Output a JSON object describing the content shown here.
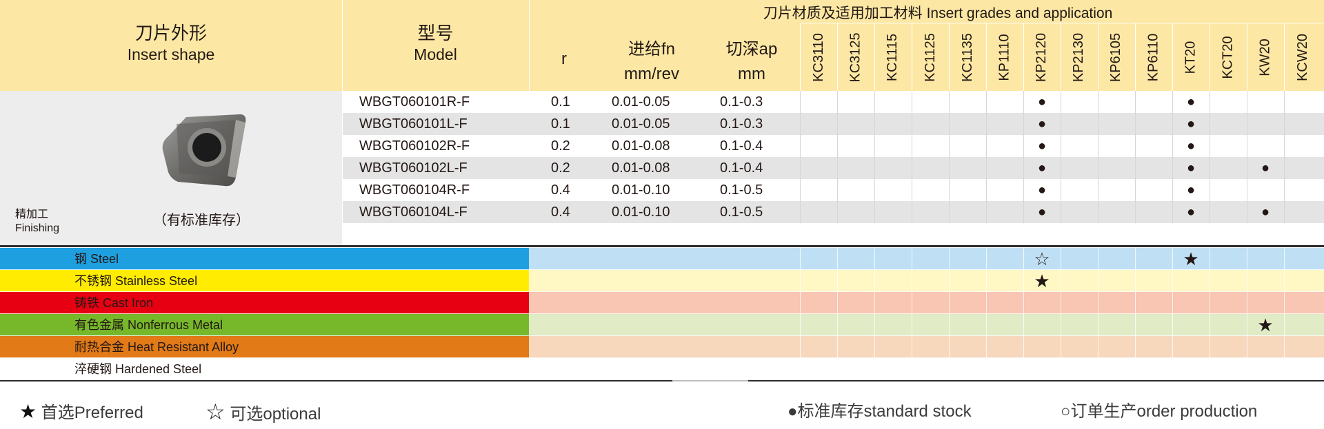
{
  "header": {
    "shape_zh": "刀片外形",
    "shape_en": "Insert shape",
    "model_zh": "型号",
    "model_en": "Model",
    "r": "r",
    "feed_1": "进给fn",
    "feed_2": "mm/rev",
    "depth_1": "切深ap",
    "depth_2": "mm",
    "grades_title": "刀片材质及适用加工材料 Insert grades and application"
  },
  "grades": [
    "KC3110",
    "KC3125",
    "KC1115",
    "KC1125",
    "KC1135",
    "KP1110",
    "KP2120",
    "KP2130",
    "KP6105",
    "KP6110",
    "KT20",
    "KCT20",
    "KW20",
    "KCW20"
  ],
  "left_panel": {
    "stock_note": "（有标准库存）",
    "op_zh": "精加工",
    "op_en": "Finishing"
  },
  "rows": [
    {
      "model": "WBGT060101R-F",
      "r": "0.1",
      "feed": "0.01-0.05",
      "depth": "0.1-0.3",
      "marks": [
        "",
        "",
        "",
        "",
        "",
        "",
        "●",
        "",
        "",
        "",
        "●",
        "",
        "",
        ""
      ]
    },
    {
      "model": "WBGT060101L-F",
      "r": "0.1",
      "feed": "0.01-0.05",
      "depth": "0.1-0.3",
      "marks": [
        "",
        "",
        "",
        "",
        "",
        "",
        "●",
        "",
        "",
        "",
        "●",
        "",
        "",
        ""
      ]
    },
    {
      "model": "WBGT060102R-F",
      "r": "0.2",
      "feed": "0.01-0.08",
      "depth": "0.1-0.4",
      "marks": [
        "",
        "",
        "",
        "",
        "",
        "",
        "●",
        "",
        "",
        "",
        "●",
        "",
        "",
        ""
      ]
    },
    {
      "model": "WBGT060102L-F",
      "r": "0.2",
      "feed": "0.01-0.08",
      "depth": "0.1-0.4",
      "marks": [
        "",
        "",
        "",
        "",
        "",
        "",
        "●",
        "",
        "",
        "",
        "●",
        "",
        "●",
        ""
      ]
    },
    {
      "model": "WBGT060104R-F",
      "r": "0.4",
      "feed": "0.01-0.10",
      "depth": "0.1-0.5",
      "marks": [
        "",
        "",
        "",
        "",
        "",
        "",
        "●",
        "",
        "",
        "",
        "●",
        "",
        "",
        ""
      ]
    },
    {
      "model": "WBGT060104L-F",
      "r": "0.4",
      "feed": "0.01-0.10",
      "depth": "0.1-0.5",
      "marks": [
        "",
        "",
        "",
        "",
        "",
        "",
        "●",
        "",
        "",
        "",
        "●",
        "",
        "●",
        ""
      ]
    }
  ],
  "materials": [
    {
      "label": "钢 Steel",
      "color": "#1ea0e0",
      "tint": "#bfe0f4",
      "marks": [
        "",
        "",
        "",
        "",
        "",
        "",
        "☆",
        "",
        "",
        "",
        "★",
        "",
        "",
        ""
      ]
    },
    {
      "label": "不锈钢 Stainless Steel",
      "color": "#ffec00",
      "tint": "#fff7c4",
      "marks": [
        "",
        "",
        "",
        "",
        "",
        "",
        "★",
        "",
        "",
        "",
        "",
        "",
        "",
        ""
      ]
    },
    {
      "label": "铸铁 Cast Iron",
      "color": "#e60012",
      "tint": "#f8c6b2",
      "marks": [
        "",
        "",
        "",
        "",
        "",
        "",
        "",
        "",
        "",
        "",
        "",
        "",
        "",
        ""
      ]
    },
    {
      "label": "有色金属 Nonferrous Metal",
      "color": "#76b82a",
      "tint": "#e1ebc6",
      "marks": [
        "",
        "",
        "",
        "",
        "",
        "",
        "",
        "",
        "",
        "",
        "",
        "",
        "★",
        ""
      ]
    },
    {
      "label": "耐热合金 Heat Resistant Alloy",
      "color": "#e17a17",
      "tint": "#f7d8bd",
      "marks": [
        "",
        "",
        "",
        "",
        "",
        "",
        "",
        "",
        "",
        "",
        "",
        "",
        "",
        ""
      ]
    },
    {
      "label": "淬硬钢 Hardened Steel",
      "color": "#ffffff",
      "tint": "#ffffff",
      "marks": [
        "",
        "",
        "",
        "",
        "",
        "",
        "",
        "",
        "",
        "",
        "",
        "",
        "",
        ""
      ]
    }
  ],
  "legend": {
    "preferred_icon": "★",
    "preferred": "首选Preferred",
    "optional_icon": "☆",
    "optional": "可选optional",
    "stock": "●标准库存standard stock",
    "order": "○订单生产order production"
  }
}
